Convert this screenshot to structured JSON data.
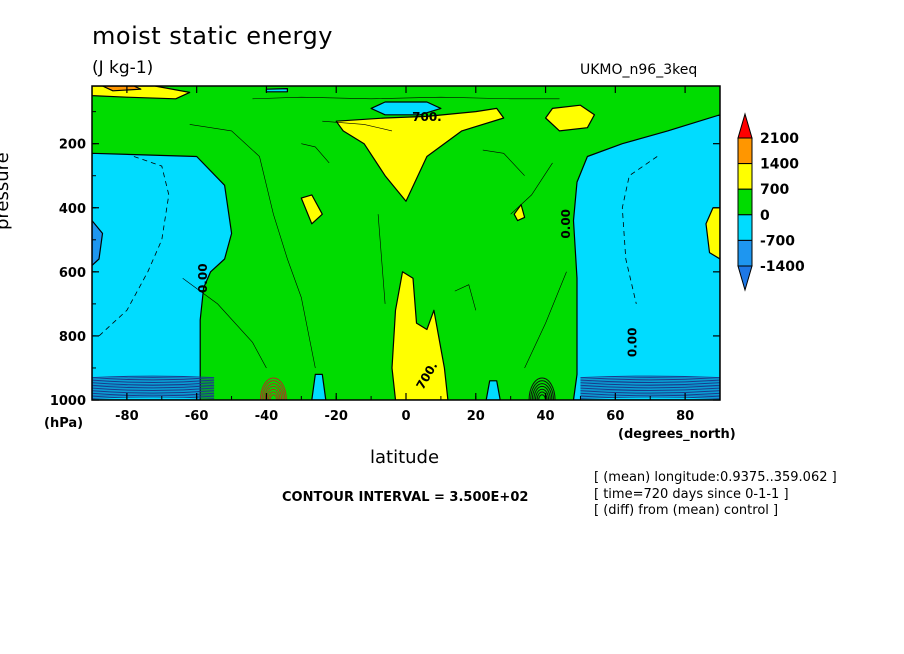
{
  "header": {
    "title": "moist static energy",
    "units": "(J kg-1)",
    "dataset": "UKMO_n96_3keq"
  },
  "footer": {
    "contour_interval": "CONTOUR INTERVAL = 3.500E+02",
    "notes": [
      "[ (mean) longitude:0.9375..359.062 ]",
      "[ time=720 days since 0-1-1 ]",
      "[ (diff) from (mean) control ]"
    ]
  },
  "colors": {
    "level_lt_-1400": "#1e78e6",
    "level_-1400_-700": "#1e96f0",
    "level_-700_0": "#00dcff",
    "level_0_700": "#00dc00",
    "level_700_1400": "#ffff00",
    "level_1400_2100": "#ff9600",
    "level_gt_2100": "#ff0000",
    "frame": "#000000"
  },
  "chart_data": {
    "type": "heatmap",
    "title": "moist static energy",
    "subtitle": "(J kg-1)",
    "xlabel": "latitude",
    "ylabel": "pressure",
    "x_unit": "(degrees_north)",
    "y_unit": "(hPa)",
    "xlim": [
      -90,
      90
    ],
    "ylim": [
      1000,
      20
    ],
    "y_scale": "linear",
    "x_ticks": [
      -80,
      -60,
      -40,
      -20,
      0,
      20,
      40,
      60,
      80
    ],
    "x_tick_labels": [
      "-80",
      "-60",
      "-40",
      "-20",
      "0",
      "20",
      "40",
      "60",
      "80"
    ],
    "y_ticks": [
      200,
      400,
      600,
      800,
      1000
    ],
    "y_tick_labels": [
      "200",
      "400",
      "600",
      "800",
      "1000"
    ],
    "colorbar": {
      "labels": [
        "2100",
        "1400",
        "700",
        "0",
        "-700",
        "-1400"
      ],
      "levels": [
        2100,
        1400,
        700,
        0,
        -700,
        -1400
      ],
      "colors": [
        "#ff0000",
        "#ff9600",
        "#ffff00",
        "#00dc00",
        "#00dcff",
        "#1e96f0",
        "#1e78e6"
      ]
    },
    "contour_labels": [
      {
        "text": "700.",
        "x": 6,
        "y": 130
      },
      {
        "text": "0.00",
        "x": 47,
        "y": 450
      },
      {
        "text": "0.00",
        "x": -57,
        "y": 620
      },
      {
        "text": "0.00",
        "x": 66,
        "y": 820
      },
      {
        "text": "700.",
        "x": 7,
        "y": 930
      }
    ],
    "regions": [
      {
        "value_range": [
          -700,
          0
        ],
        "color": "#00dcff",
        "points": [
          [
            -90,
            230
          ],
          [
            -60,
            240
          ],
          [
            -52,
            330
          ],
          [
            -50,
            480
          ],
          [
            -52,
            560
          ],
          [
            -56,
            600
          ],
          [
            -58,
            650
          ],
          [
            -59,
            750
          ],
          [
            -59,
            1000
          ],
          [
            -90,
            1000
          ]
        ]
      },
      {
        "value_range": [
          -1400,
          -700
        ],
        "color": "#1e96f0",
        "points": [
          [
            -90,
            440
          ],
          [
            -87,
            480
          ],
          [
            -88,
            560
          ],
          [
            -90,
            580
          ]
        ]
      },
      {
        "value_range": [
          -700,
          0
        ],
        "color": "#00dcff",
        "points": [
          [
            49,
            320
          ],
          [
            52,
            240
          ],
          [
            62,
            200
          ],
          [
            75,
            160
          ],
          [
            90,
            110
          ],
          [
            90,
            1000
          ],
          [
            48,
            1000
          ],
          [
            49,
            920
          ],
          [
            49,
            620
          ],
          [
            48,
            440
          ]
        ]
      },
      {
        "value_range": [
          -700,
          0
        ],
        "color": "#00dcff",
        "points": [
          [
            -10,
            90
          ],
          [
            -6,
            70
          ],
          [
            6,
            70
          ],
          [
            10,
            90
          ],
          [
            4,
            110
          ],
          [
            -6,
            110
          ]
        ]
      },
      {
        "value_range": [
          -700,
          0
        ],
        "color": "#00dcff",
        "points": [
          [
            -40,
            30
          ],
          [
            -34,
            28
          ],
          [
            -34,
            38
          ],
          [
            -40,
            38
          ]
        ]
      },
      {
        "value_range": [
          700,
          1400
        ],
        "color": "#ffff00",
        "points": [
          [
            -20,
            130
          ],
          [
            -6,
            120
          ],
          [
            6,
            115
          ],
          [
            20,
            100
          ],
          [
            26,
            90
          ],
          [
            28,
            120
          ],
          [
            16,
            160
          ],
          [
            6,
            240
          ],
          [
            0,
            380
          ],
          [
            -6,
            300
          ],
          [
            -12,
            200
          ],
          [
            -18,
            160
          ]
        ]
      },
      {
        "value_range": [
          700,
          1400
        ],
        "color": "#ffff00",
        "points": [
          [
            -3,
            1000
          ],
          [
            -4,
            900
          ],
          [
            -3,
            720
          ],
          [
            -1,
            600
          ],
          [
            2,
            620
          ],
          [
            3,
            760
          ],
          [
            6,
            780
          ],
          [
            8,
            720
          ],
          [
            11,
            900
          ],
          [
            12,
            1000
          ]
        ]
      },
      {
        "value_range": [
          700,
          1400
        ],
        "color": "#ffff00",
        "points": [
          [
            -90,
            20
          ],
          [
            -72,
            20
          ],
          [
            -62,
            40
          ],
          [
            -66,
            60
          ],
          [
            -80,
            55
          ],
          [
            -90,
            50
          ]
        ]
      },
      {
        "value_range": [
          1400,
          2100
        ],
        "color": "#ff9600",
        "points": [
          [
            -87,
            20
          ],
          [
            -78,
            20
          ],
          [
            -76,
            30
          ],
          [
            -84,
            35
          ]
        ]
      },
      {
        "value_range": [
          700,
          1400
        ],
        "color": "#ffff00",
        "points": [
          [
            40,
            120
          ],
          [
            42,
            90
          ],
          [
            50,
            80
          ],
          [
            54,
            110
          ],
          [
            52,
            150
          ],
          [
            44,
            160
          ]
        ]
      },
      {
        "value_range": [
          700,
          1400
        ],
        "color": "#ffff00",
        "points": [
          [
            -30,
            370
          ],
          [
            -27,
            360
          ],
          [
            -24,
            420
          ],
          [
            -27,
            450
          ]
        ]
      },
      {
        "value_range": [
          700,
          1400
        ],
        "color": "#ffff00",
        "points": [
          [
            31,
            420
          ],
          [
            33,
            390
          ],
          [
            34,
            430
          ],
          [
            32,
            440
          ]
        ]
      },
      {
        "value_range": [
          700,
          1400
        ],
        "color": "#ffff00",
        "points": [
          [
            86,
            450
          ],
          [
            88,
            400
          ],
          [
            90,
            400
          ],
          [
            90,
            560
          ],
          [
            87,
            540
          ]
        ]
      },
      {
        "value_range": [
          -700,
          0
        ],
        "color": "#00dcff",
        "points": [
          [
            -26,
            920
          ],
          [
            -24,
            920
          ],
          [
            -23,
            1000
          ],
          [
            -27,
            1000
          ]
        ]
      },
      {
        "value_range": [
          -700,
          0
        ],
        "color": "#00dcff",
        "points": [
          [
            24,
            940
          ],
          [
            26,
            940
          ],
          [
            27,
            1000
          ],
          [
            23,
            1000
          ]
        ]
      }
    ]
  }
}
